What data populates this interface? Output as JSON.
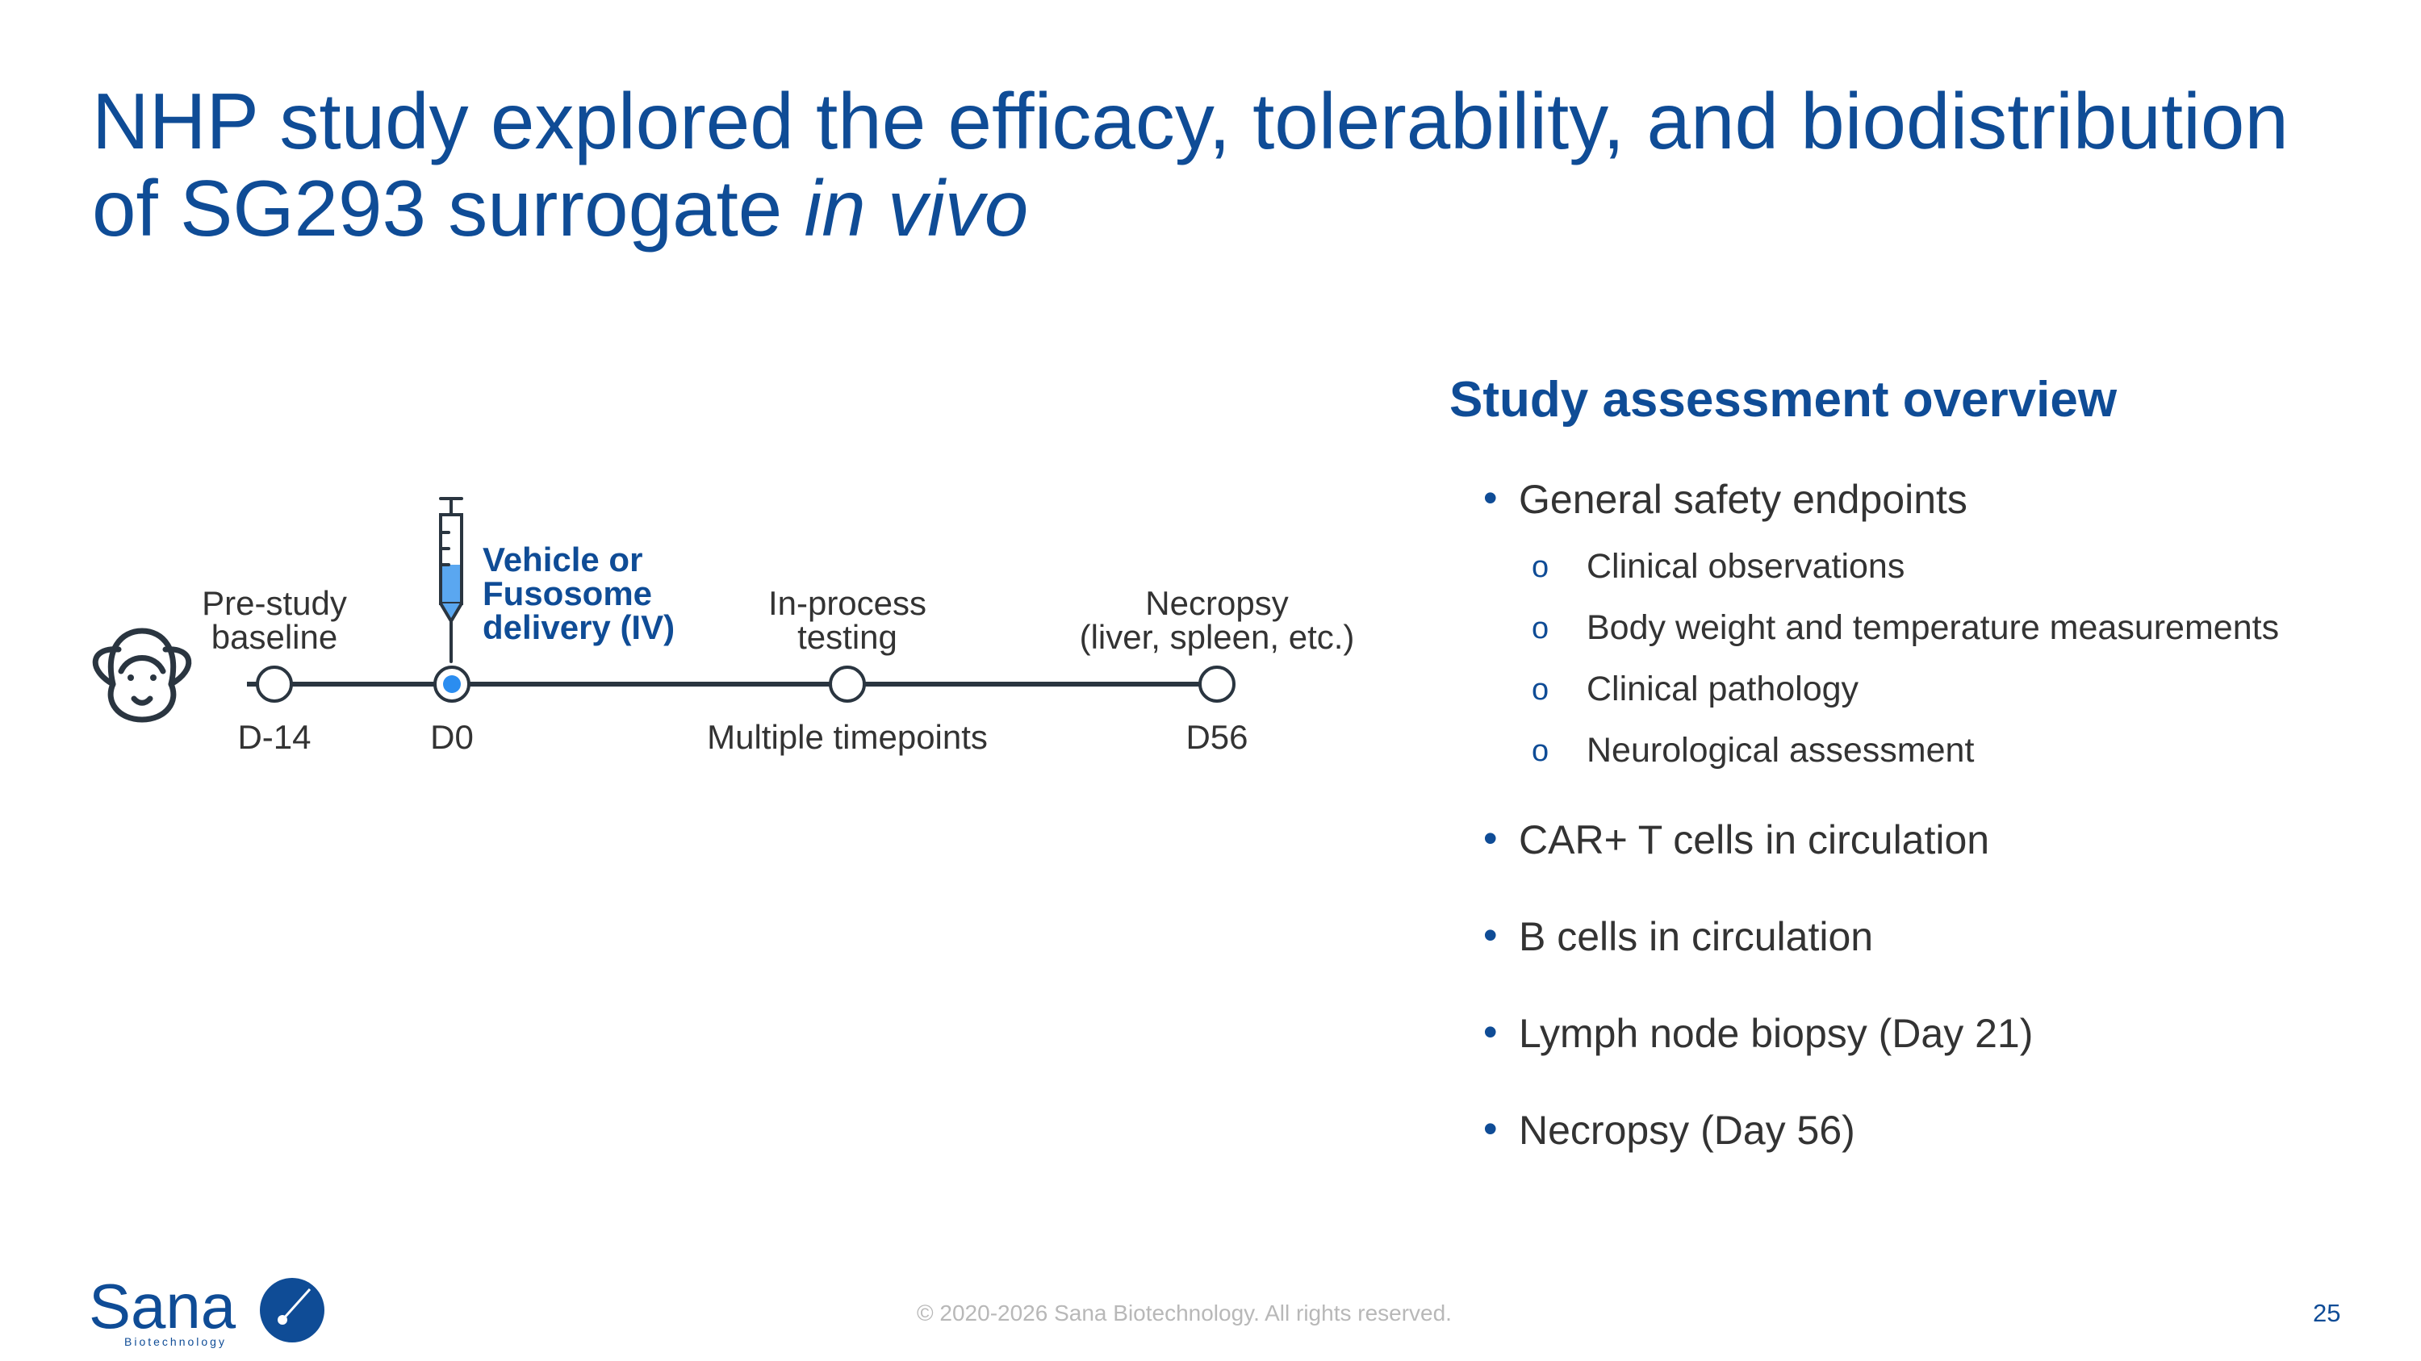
{
  "title": {
    "line1": "NHP study explored the efficacy, tolerability, and biodistribution",
    "line2_prefix": "of SG293 surrogate ",
    "line2_italic": "in vivo"
  },
  "timeline": {
    "subject_icon": "monkey-icon",
    "delivery_icon": "syringe-icon",
    "events": [
      {
        "label_line1": "Pre-study",
        "label_line2": "baseline",
        "day": "D-14"
      },
      {
        "label_line1": "Vehicle or",
        "label_line2": "Fusosome",
        "label_line3": "delivery (IV)",
        "day": "D0"
      },
      {
        "label_line1": "In-process",
        "label_line2": "testing",
        "day": "Multiple timepoints"
      },
      {
        "label_line1": "Necropsy",
        "label_line2": "(liver, spleen, etc.)",
        "day": "D56"
      }
    ]
  },
  "overview": {
    "heading": "Study assessment overview",
    "items": [
      {
        "text": "General safety endpoints",
        "subitems": [
          "Clinical observations",
          "Body weight and temperature measurements",
          "Clinical pathology",
          "Neurological assessment"
        ]
      },
      {
        "text": "CAR+ T cells in circulation"
      },
      {
        "text": "B cells in circulation"
      },
      {
        "text": "Lymph node biopsy (Day 21)"
      },
      {
        "text": "Necropsy (Day 56)"
      }
    ]
  },
  "footer": {
    "copyright": "© 2020-2026 Sana Biotechnology. All rights reserved.",
    "page_number": "25",
    "logo_text": "Sana",
    "logo_subtext": "Biotechnology"
  },
  "colors": {
    "brand_blue": "#0f4c96",
    "dot_blue": "#2b8df0",
    "syringe_fill": "#5aa7f0",
    "text_gray": "#333333",
    "line_dark": "#2a3540"
  }
}
